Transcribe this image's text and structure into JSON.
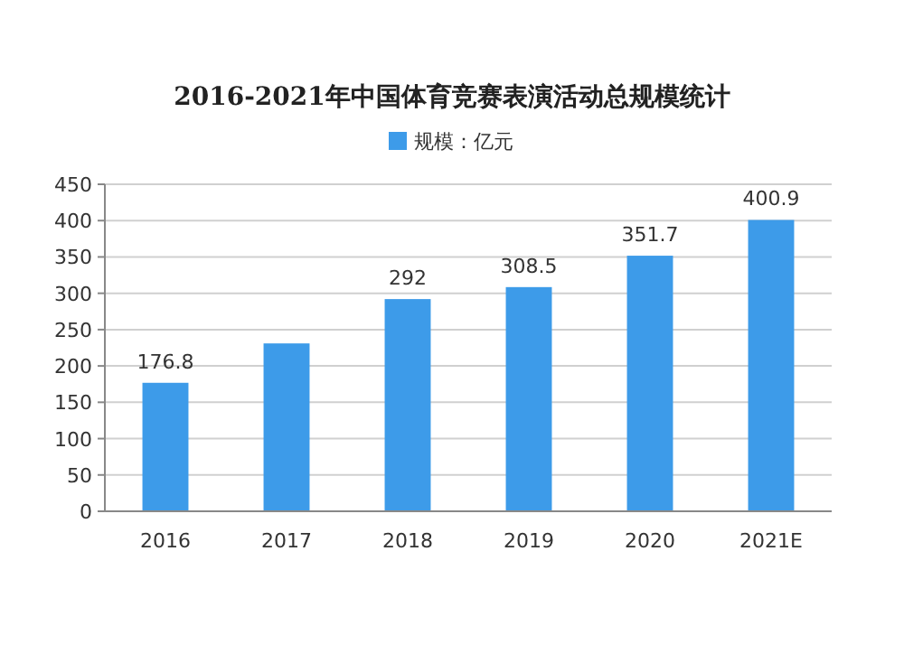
{
  "chart_data": {
    "type": "bar",
    "title": "2016-2021年中国体育竞赛表演活动总规模统计",
    "categories": [
      "2016",
      "2017",
      "2018",
      "2019",
      "2020",
      "2021E"
    ],
    "series": [
      {
        "name": "规模：亿元",
        "color": "#3d9be9",
        "values": [
          176.8,
          231,
          292,
          308.5,
          351.7,
          400.9
        ],
        "value_labels": [
          "176.8",
          null,
          "292",
          "308.5",
          "351.7",
          "400.9"
        ]
      }
    ],
    "ylim": [
      0,
      450
    ],
    "yticks": [
      0,
      50,
      100,
      150,
      200,
      250,
      300,
      350,
      400,
      450
    ],
    "grid": "y",
    "legend": "top"
  }
}
